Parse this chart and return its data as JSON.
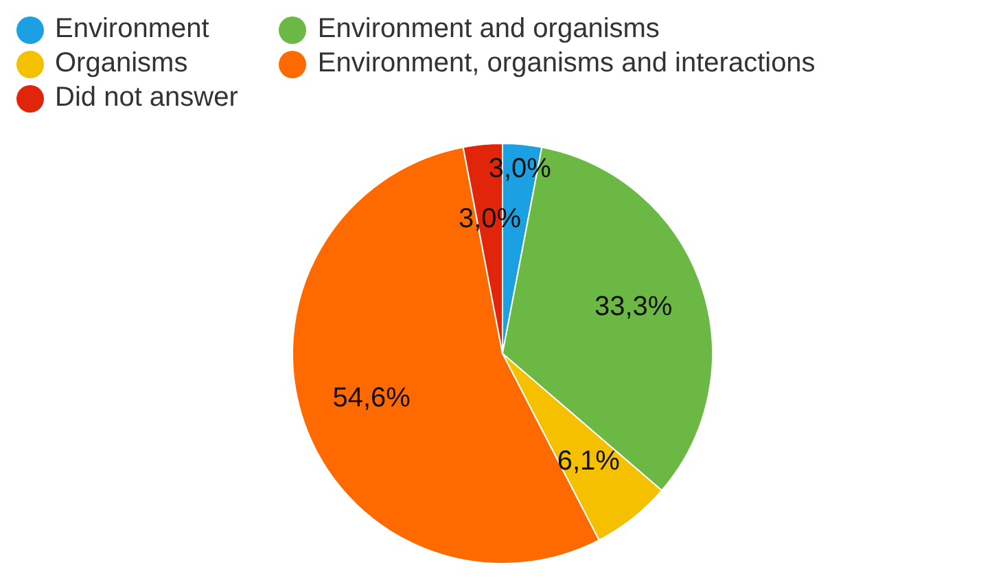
{
  "chart_data": {
    "type": "pie",
    "categories": [
      "Environment",
      "Environment and organisms",
      "Organisms",
      "Environment, organisms and interactions",
      "Did not answer"
    ],
    "values": [
      3.0,
      33.3,
      6.1,
      54.6,
      3.0
    ],
    "colors": [
      "#1ba1e2",
      "#6bb944",
      "#f5c000",
      "#ff6a00",
      "#e0250b"
    ],
    "value_labels": [
      "3,0%",
      "33,3%",
      "6,1%",
      "54,6%",
      "3,0%"
    ],
    "legend": "top left"
  }
}
